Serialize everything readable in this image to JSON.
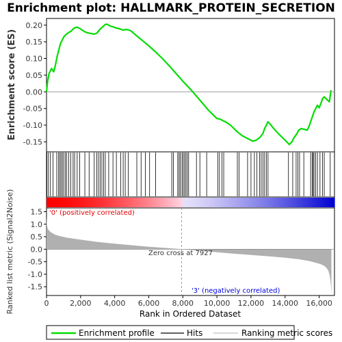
{
  "chart_data": {
    "type": "line",
    "title": "Enrichment plot: HALLMARK_PROTEIN_SECRETION",
    "ylabel_top": "Enrichment score (ES)",
    "ylabel_bottom": "Ranked list metric (Signal2Noise)",
    "xlabel": "Rank in Ordered Dataset",
    "xlim": [
      0,
      16900
    ],
    "x_ticks": [
      0,
      2000,
      4000,
      6000,
      8000,
      10000,
      12000,
      14000,
      16000
    ],
    "x_tick_labels": [
      "0",
      "2,000",
      "4,000",
      "6,000",
      "8,000",
      "10,000",
      "12,000",
      "14,000",
      "16,000"
    ],
    "es_ylim": [
      -0.18,
      0.22
    ],
    "es_ticks": [
      -0.15,
      -0.1,
      -0.05,
      0.0,
      0.05,
      0.1,
      0.15,
      0.2
    ],
    "es_tick_labels": [
      "-0.15",
      "-0.10",
      "-0.05",
      "0.00",
      "0.05",
      "0.10",
      "0.15",
      "0.20"
    ],
    "metric_ylim": [
      -1.85,
      1.65
    ],
    "metric_ticks": [
      -1.5,
      -1.0,
      -0.5,
      0.0,
      0.5,
      1.0,
      1.5
    ],
    "metric_tick_labels": [
      "-1.5",
      "-1.0",
      "-0.5",
      "0.0",
      "0.5",
      "1.0",
      "1.5"
    ],
    "zero_cross": 7927,
    "zero_cross_label": "Zero cross at 7927",
    "pos_label": "'0' (positively correlated)",
    "neg_label": "'3' (negatively correlated)",
    "colors": {
      "es_line": "#00dd00",
      "pos_text": "#dd0000",
      "neg_text": "#0000dd",
      "metric_fill": "#b0b0b0",
      "hits": "#000000"
    },
    "legend": [
      "Enrichment profile",
      "Hits",
      "Ranking metric scores"
    ],
    "series": [
      {
        "name": "Enrichment profile",
        "x": [
          0,
          60,
          150,
          300,
          420,
          520,
          620,
          720,
          820,
          920,
          1020,
          1150,
          1300,
          1450,
          1550,
          1650,
          1800,
          1950,
          2100,
          2250,
          2400,
          2600,
          2800,
          2950,
          3050,
          3150,
          3300,
          3450,
          3550,
          3650,
          3750,
          3900,
          4050,
          4200,
          4350,
          4500,
          4650,
          4800,
          4950,
          5200,
          5600,
          6000,
          6400,
          6800,
          7200,
          7600,
          8000,
          8500,
          9000,
          9500,
          9900,
          10000,
          10200,
          10300,
          10500,
          10800,
          11000,
          11200,
          11500,
          11800,
          12100,
          12300,
          12500,
          12700,
          12800,
          12900,
          13000,
          13100,
          13300,
          13600,
          13900,
          14100,
          14250,
          14400,
          14500,
          14600,
          14700,
          14800,
          14950,
          15100,
          15300,
          15400,
          15500,
          15600,
          15700,
          15800,
          15900,
          16000,
          16100,
          16200,
          16300,
          16400,
          16500,
          16600,
          16700
        ],
        "y": [
          0.0,
          0.03,
          0.055,
          0.07,
          0.06,
          0.08,
          0.105,
          0.125,
          0.145,
          0.155,
          0.165,
          0.172,
          0.178,
          0.182,
          0.188,
          0.192,
          0.194,
          0.19,
          0.185,
          0.18,
          0.177,
          0.175,
          0.173,
          0.176,
          0.182,
          0.188,
          0.195,
          0.202,
          0.203,
          0.2,
          0.197,
          0.195,
          0.192,
          0.19,
          0.188,
          0.185,
          0.187,
          0.186,
          0.183,
          0.172,
          0.155,
          0.138,
          0.12,
          0.1,
          0.078,
          0.055,
          0.032,
          0.005,
          -0.025,
          -0.055,
          -0.075,
          -0.08,
          -0.082,
          -0.085,
          -0.09,
          -0.1,
          -0.11,
          -0.12,
          -0.132,
          -0.14,
          -0.148,
          -0.145,
          -0.138,
          -0.125,
          -0.11,
          -0.1,
          -0.09,
          -0.095,
          -0.108,
          -0.125,
          -0.14,
          -0.15,
          -0.158,
          -0.15,
          -0.14,
          -0.132,
          -0.125,
          -0.115,
          -0.11,
          -0.112,
          -0.115,
          -0.105,
          -0.09,
          -0.075,
          -0.06,
          -0.05,
          -0.04,
          -0.048,
          -0.035,
          -0.02,
          -0.015,
          -0.02,
          -0.025,
          -0.03,
          0.005
        ]
      },
      {
        "name": "Hits",
        "x": [
          20,
          110,
          230,
          380,
          600,
          700,
          780,
          850,
          930,
          1010,
          1100,
          1190,
          1300,
          1420,
          1560,
          1650,
          1800,
          1950,
          2250,
          2500,
          2800,
          2950,
          3050,
          3150,
          3250,
          3350,
          3450,
          3650,
          3900,
          4100,
          4350,
          4500,
          4620,
          4800,
          5300,
          5550,
          5800,
          6050,
          6400,
          7350,
          7450,
          7700,
          7780,
          7850,
          7950,
          8020,
          8100,
          8180,
          8260,
          8340,
          8800,
          9000,
          9400,
          10050,
          10150,
          10300,
          10400,
          11200,
          11300,
          11800,
          12000,
          12200,
          12350,
          12500,
          12600,
          12700,
          12800,
          12900,
          13000,
          14200,
          14450,
          14650,
          14750,
          14850,
          15100,
          15500,
          15600,
          15650,
          15700,
          15800,
          15900,
          16050,
          16200,
          16300,
          16650
        ]
      },
      {
        "name": "Ranking metric scores",
        "x": [
          0,
          30,
          80,
          150,
          300,
          500,
          800,
          1200,
          2000,
          3000,
          4000,
          5000,
          6000,
          7000,
          7927,
          9000,
          10000,
          11000,
          12000,
          13000,
          14000,
          14800,
          15400,
          15800,
          16100,
          16300,
          16450,
          16550,
          16620,
          16680,
          16720
        ],
        "y": [
          1.3,
          0.95,
          0.82,
          0.74,
          0.66,
          0.58,
          0.52,
          0.46,
          0.38,
          0.29,
          0.22,
          0.16,
          0.1,
          0.05,
          0.0,
          -0.06,
          -0.12,
          -0.18,
          -0.23,
          -0.28,
          -0.34,
          -0.4,
          -0.47,
          -0.54,
          -0.6,
          -0.67,
          -0.76,
          -0.88,
          -1.05,
          -1.35,
          -1.78
        ]
      }
    ]
  }
}
